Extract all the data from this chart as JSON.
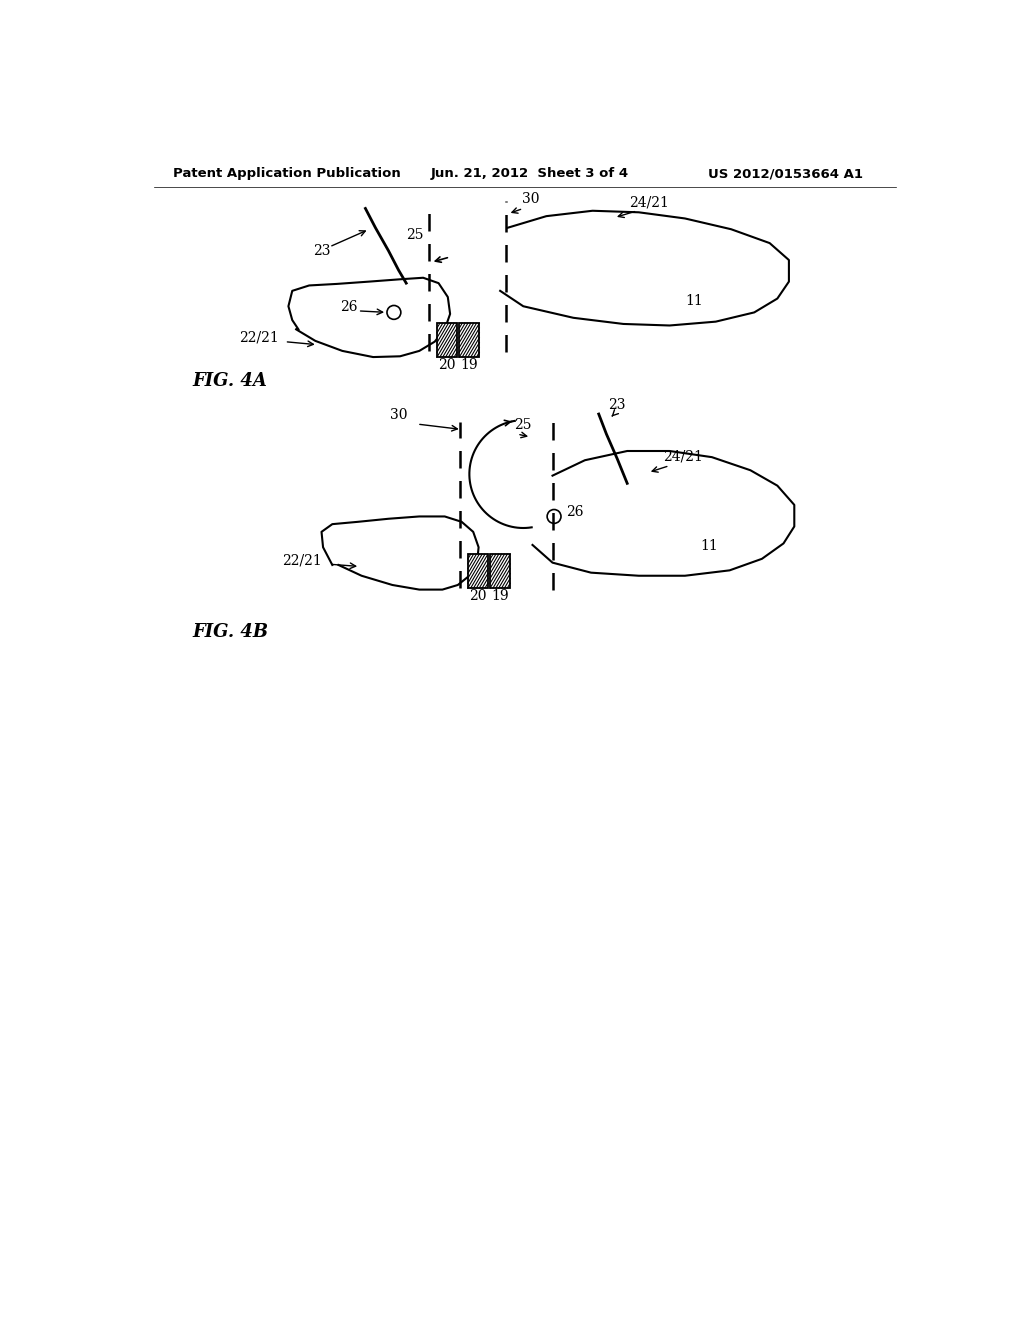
{
  "background_color": "#ffffff",
  "header_text": "Patent Application Publication",
  "header_date": "Jun. 21, 2012  Sheet 3 of 4",
  "header_patent": "US 2012/0153664 A1",
  "fig4a_label": "FIG. 4A",
  "fig4b_label": "FIG. 4B",
  "line_color": "#000000",
  "text_color": "#000000"
}
